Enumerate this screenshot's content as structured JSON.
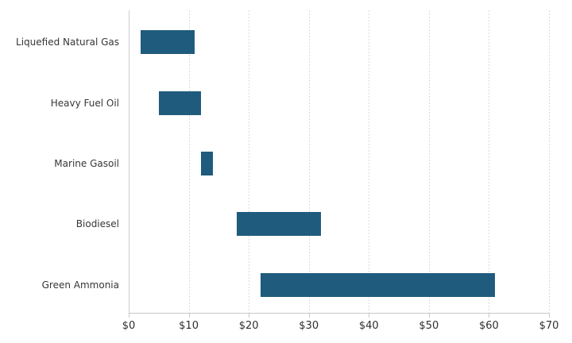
{
  "chart_data": {
    "type": "bar",
    "subtype": "horizontal-range-bar",
    "title": "",
    "xlabel": "",
    "ylabel": "",
    "categories": [
      "Liquefied Natural Gas",
      "Heavy Fuel Oil",
      "Marine Gasoil",
      "Biodiesel",
      "Green Ammonia"
    ],
    "series": [
      {
        "name": "cost-range",
        "ranges": [
          {
            "category": "Liquefied Natural Gas",
            "low": 2,
            "high": 11
          },
          {
            "category": "Heavy Fuel Oil",
            "low": 5,
            "high": 12
          },
          {
            "category": "Marine Gasoil",
            "low": 12,
            "high": 14
          },
          {
            "category": "Biodiesel",
            "low": 18,
            "high": 32
          },
          {
            "category": "Green Ammonia",
            "low": 22,
            "high": 61
          }
        ]
      }
    ],
    "xlim": [
      0,
      70
    ],
    "x_ticks": [
      0,
      10,
      20,
      30,
      40,
      50,
      60,
      70
    ],
    "x_tick_labels": [
      "$0",
      "$10",
      "$20",
      "$30",
      "$40",
      "$50",
      "$60",
      "$70"
    ],
    "grid": "vertical-dashed",
    "legend": "none",
    "colors": {
      "bar": "#1f5b7d",
      "gridline": "#dadada",
      "axis_line": "#c9c9c9",
      "zero_line": "#cccccc",
      "y_label_text": "#363636",
      "x_label_text": "#2e2e2e",
      "background": "#ffffff"
    }
  }
}
